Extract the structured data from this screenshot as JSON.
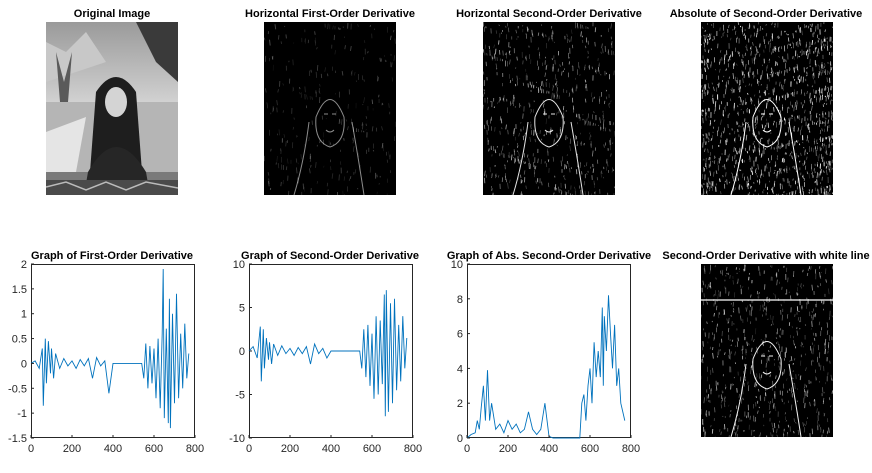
{
  "image_panels": [
    {
      "title": "Original Image",
      "kind": "photo"
    },
    {
      "title": "Horizontal First-Order Derivative",
      "kind": "edges-faint"
    },
    {
      "title": "Horizontal Second-Order Derivative",
      "kind": "edges-medium"
    },
    {
      "title": "Absolute of Second-Order Derivative",
      "kind": "edges-strong"
    },
    {
      "title": "Second-Order Derivative with white line",
      "kind": "edges-medium-line"
    }
  ],
  "colors": {
    "line": "#0072BD",
    "axis": "#262626",
    "background": "#ffffff"
  },
  "chart_data": [
    {
      "type": "line",
      "title": "Graph of First-Order Derivative",
      "xlim": [
        0,
        800
      ],
      "ylim": [
        -1.5,
        2
      ],
      "xticks": [
        "0",
        "200",
        "400",
        "600",
        "800"
      ],
      "yticks": [
        "-1.5",
        "-1",
        "-0.5",
        "0",
        "0.5",
        "1",
        "1.5",
        "2"
      ],
      "series": [
        {
          "x": [
            0,
            20,
            40,
            55,
            60,
            70,
            75,
            85,
            95,
            100,
            110,
            120,
            140,
            160,
            180,
            200,
            220,
            240,
            260,
            280,
            300,
            320,
            340,
            360,
            380,
            400,
            420,
            440,
            460,
            480,
            500,
            520,
            540,
            550,
            560,
            570,
            580,
            590,
            600,
            610,
            620,
            630,
            640,
            645,
            650,
            660,
            670,
            675,
            680,
            690,
            700,
            710,
            720,
            730,
            740,
            750,
            760,
            770
          ],
          "y": [
            0,
            0.05,
            -0.1,
            0.3,
            -0.85,
            0.5,
            -0.4,
            0.45,
            -0.2,
            0.3,
            -0.3,
            0.2,
            -0.1,
            0.1,
            -0.05,
            0.05,
            -0.1,
            0.08,
            -0.05,
            0.1,
            -0.3,
            0.12,
            -0.05,
            0.05,
            -0.6,
            0,
            0,
            0,
            0,
            0,
            0,
            0,
            0,
            -0.3,
            0.4,
            -0.5,
            0.35,
            -0.4,
            0.3,
            -0.7,
            0.5,
            -0.9,
            0.6,
            1.9,
            -1.1,
            0.7,
            -1.2,
            1.3,
            -1.3,
            1.0,
            -0.8,
            1.4,
            -0.7,
            0.6,
            -0.5,
            0.8,
            -0.3,
            0.2
          ]
        }
      ]
    },
    {
      "type": "line",
      "title": "Graph of Second-Order Derivative",
      "xlim": [
        0,
        800
      ],
      "ylim": [
        -10,
        10
      ],
      "xticks": [
        "0",
        "200",
        "400",
        "600",
        "800"
      ],
      "yticks": [
        "-10",
        "-5",
        "0",
        "5",
        "10"
      ],
      "series": [
        {
          "x": [
            0,
            20,
            40,
            55,
            60,
            70,
            75,
            85,
            95,
            100,
            110,
            120,
            140,
            160,
            180,
            200,
            220,
            240,
            260,
            280,
            300,
            320,
            340,
            360,
            380,
            400,
            420,
            440,
            460,
            480,
            500,
            520,
            540,
            550,
            560,
            570,
            580,
            590,
            600,
            610,
            620,
            630,
            640,
            650,
            660,
            665,
            670,
            680,
            690,
            700,
            710,
            720,
            730,
            740,
            750,
            760,
            770
          ],
          "y": [
            0,
            0.5,
            -0.8,
            2.8,
            -3.5,
            2.5,
            -2.0,
            1.5,
            -1.0,
            1.0,
            -1.5,
            0.8,
            -0.5,
            0.6,
            -0.3,
            0.3,
            -0.5,
            0.4,
            -0.3,
            0.5,
            -1.5,
            0.8,
            -0.3,
            0.3,
            -0.8,
            0,
            0,
            0,
            0,
            0,
            0,
            0,
            0,
            -2.0,
            2.5,
            -3.0,
            3.0,
            -4.0,
            2.0,
            -5.5,
            4.0,
            -5.0,
            3.5,
            -3.8,
            6.5,
            -7.5,
            7.0,
            -7.0,
            5.5,
            -6.0,
            6.0,
            -4.5,
            3.0,
            -3.5,
            4.0,
            -2.0,
            1.5
          ]
        }
      ]
    },
    {
      "type": "line",
      "title": "Graph of Abs. Second-Order Derivative",
      "xlim": [
        0,
        800
      ],
      "ylim": [
        0,
        10
      ],
      "xticks": [
        "0",
        "200",
        "400",
        "600",
        "800"
      ],
      "yticks": [
        "0",
        "2",
        "4",
        "6",
        "8",
        "10"
      ],
      "series": [
        {
          "x": [
            0,
            20,
            40,
            50,
            60,
            70,
            80,
            90,
            100,
            110,
            120,
            140,
            160,
            180,
            200,
            220,
            240,
            260,
            280,
            300,
            320,
            340,
            360,
            380,
            400,
            420,
            440,
            460,
            480,
            500,
            520,
            540,
            550,
            560,
            570,
            580,
            590,
            600,
            610,
            620,
            630,
            640,
            650,
            660,
            665,
            670,
            680,
            690,
            700,
            710,
            720,
            730,
            740,
            750,
            760,
            770
          ],
          "y": [
            0,
            0.2,
            0.3,
            1.0,
            0.5,
            1.8,
            3.0,
            1.0,
            3.9,
            1.0,
            2.0,
            0.5,
            0.8,
            0.3,
            1.0,
            0.5,
            0.8,
            0.3,
            0.5,
            1.5,
            0.5,
            0.2,
            0.5,
            2.0,
            0.1,
            0,
            0,
            0,
            0,
            0,
            0,
            0,
            0,
            2.0,
            2.5,
            1.0,
            3.0,
            4.0,
            2.0,
            5.5,
            3.5,
            5.0,
            3.5,
            7.5,
            3.0,
            7.0,
            5.0,
            8.2,
            6.0,
            4.0,
            6.5,
            3.0,
            4.0,
            2.0,
            1.5,
            1.0
          ]
        }
      ]
    }
  ]
}
